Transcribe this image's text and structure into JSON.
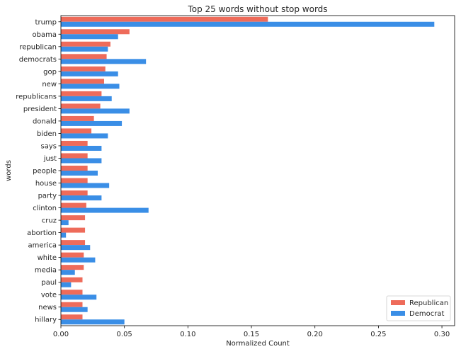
{
  "chart_data": {
    "type": "bar",
    "orientation": "horizontal",
    "title": "Top 25 words without stop words",
    "xlabel": "Normalized Count",
    "ylabel": "words",
    "xlim": [
      0,
      0.31
    ],
    "xticks": [
      "0.00",
      "0.05",
      "0.10",
      "0.15",
      "0.20",
      "0.25",
      "0.30"
    ],
    "grid": false,
    "legend_position": "lower-right",
    "categories": [
      "trump",
      "obama",
      "republican",
      "democrats",
      "gop",
      "new",
      "republicans",
      "president",
      "donald",
      "biden",
      "says",
      "just",
      "people",
      "house",
      "party",
      "clinton",
      "cruz",
      "abortion",
      "america",
      "white",
      "media",
      "paul",
      "vote",
      "news",
      "hillary"
    ],
    "series": [
      {
        "name": "Republican",
        "color": "#EE6B5A",
        "values": [
          0.163,
          0.054,
          0.039,
          0.036,
          0.035,
          0.034,
          0.032,
          0.031,
          0.026,
          0.024,
          0.021,
          0.021,
          0.021,
          0.021,
          0.021,
          0.02,
          0.019,
          0.019,
          0.019,
          0.018,
          0.018,
          0.017,
          0.017,
          0.017,
          0.017
        ]
      },
      {
        "name": "Democrat",
        "color": "#3A8EE6",
        "values": [
          0.294,
          0.045,
          0.037,
          0.067,
          0.045,
          0.046,
          0.04,
          0.054,
          0.048,
          0.037,
          0.032,
          0.032,
          0.029,
          0.038,
          0.032,
          0.069,
          0.006,
          0.004,
          0.023,
          0.027,
          0.011,
          0.008,
          0.028,
          0.021,
          0.05
        ]
      }
    ]
  }
}
